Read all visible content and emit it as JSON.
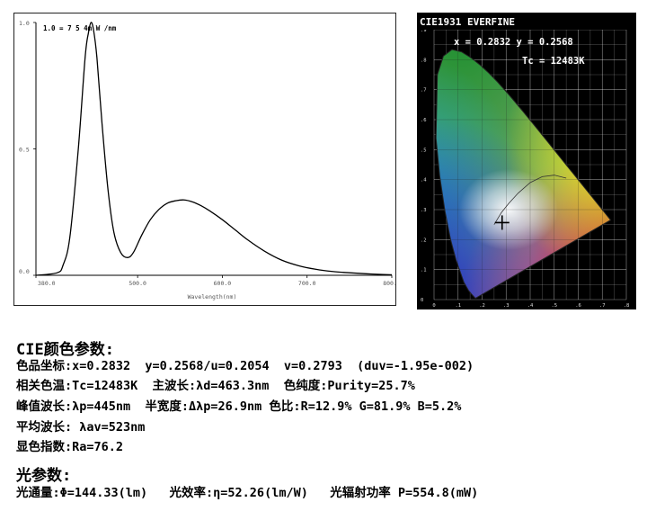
{
  "chart_data": [
    {
      "type": "line",
      "title": "",
      "annotation": "1.0 = 7 5 4m W /nm",
      "xlabel": "Wavelength(nm)",
      "ylabel": "",
      "xlim": [
        380,
        800
      ],
      "ylim": [
        0,
        1.0
      ],
      "x_ticks": [
        "380.0",
        "500.0",
        "600.0",
        "700.0",
        "800.0"
      ],
      "x_tick_values": [
        380,
        500,
        600,
        700,
        800
      ],
      "y_ticks": [
        "0.0",
        "0.5",
        "1.0"
      ],
      "y_tick_values": [
        0,
        0.5,
        1.0
      ],
      "series": [
        {
          "x": [
            380,
            405,
            412,
            420,
            430,
            438,
            442,
            445,
            448,
            452,
            458,
            465,
            472,
            480,
            488,
            495,
            505,
            515,
            525,
            535,
            545,
            555,
            565,
            575,
            585,
            600,
            615,
            630,
            650,
            670,
            690,
            710,
            730,
            750,
            770,
            790,
            800
          ],
          "y": [
            0.0,
            0.01,
            0.04,
            0.15,
            0.5,
            0.86,
            0.96,
            1.0,
            0.97,
            0.86,
            0.6,
            0.34,
            0.17,
            0.09,
            0.07,
            0.09,
            0.16,
            0.22,
            0.26,
            0.285,
            0.295,
            0.298,
            0.29,
            0.275,
            0.255,
            0.22,
            0.18,
            0.14,
            0.095,
            0.06,
            0.038,
            0.024,
            0.015,
            0.01,
            0.006,
            0.003,
            0.002
          ]
        }
      ]
    },
    {
      "type": "scatter",
      "title": "CIE1931 EVERFINE",
      "coord_label": "x = 0.2832   y = 0.2568",
      "tc_label": "Tc = 12483K",
      "xlim": [
        0,
        0.8
      ],
      "ylim": [
        0,
        0.9
      ],
      "x_ticks": [
        "0",
        ".1",
        ".2",
        ".3",
        ".4",
        ".5",
        ".6",
        ".7",
        ".8"
      ],
      "y_ticks": [
        "0",
        ".1",
        ".2",
        ".3",
        ".4",
        ".5",
        ".6",
        ".7",
        ".8",
        ".9"
      ],
      "point": {
        "x": 0.2832,
        "y": 0.2568
      }
    }
  ],
  "params": {
    "cie_title": "CIE颜色参数:",
    "line1": "色品坐标:x=0.2832  y=0.2568/u=0.2054  v=0.2793  (duv=-1.95e-002)",
    "line2": "相关色温:Tc=12483K  主波长:λd=463.3nm  色纯度:Purity=25.7%",
    "line3": "峰值波长:λp=445nm  半宽度:Δλp=26.9nm 色比:R=12.9% G=81.9% B=5.2%",
    "line4": "平均波长: λav=523nm",
    "line5": "显色指数:Ra=76.2",
    "light_title": "光参数:",
    "line6": "光通量:Φ=144.33(lm)   光效率:η=52.26(lm/W)   光辐射功率 P=554.8(mW)"
  }
}
